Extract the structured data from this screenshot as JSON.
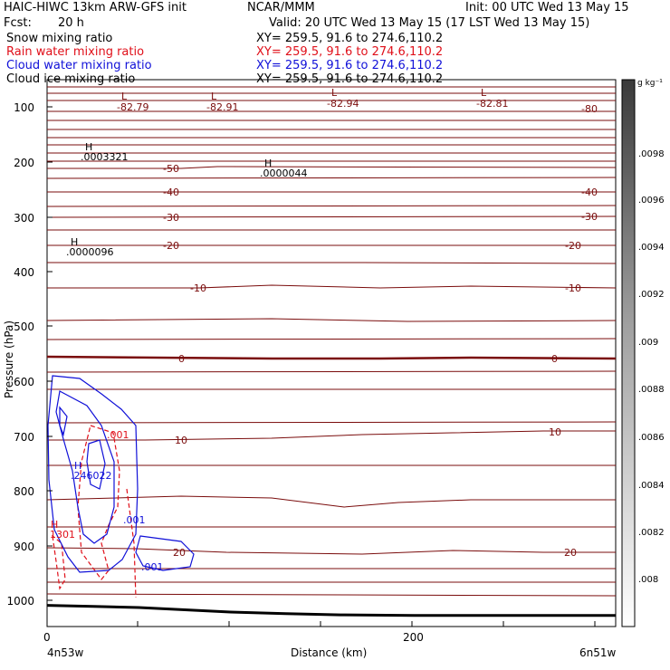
{
  "header": {
    "model": "HAIC-HIWC 13km ARW-GFS init",
    "org": "NCAR/MMM",
    "init": "Init: 00 UTC Wed 13 May 15",
    "fcst_label": "Fcst:",
    "fcst_value": "20 h",
    "valid": "Valid: 20 UTC Wed 13 May 15 (17 LST Wed 13 May 15)"
  },
  "fields": [
    {
      "name": "Snow mixing ratio",
      "xy": "XY= 259.5, 91.6 to 274.6,110.2",
      "color": "#000000"
    },
    {
      "name": "Rain water mixing ratio",
      "xy": "XY= 259.5, 91.6 to 274.6,110.2",
      "color": "#e0101a"
    },
    {
      "name": "Cloud water mixing ratio",
      "xy": "XY= 259.5, 91.6 to 274.6,110.2",
      "color": "#1010d8"
    },
    {
      "name": "Cloud ice mixing ratio",
      "xy": "XY= 259.5, 91.6 to 274.6,110.2",
      "color": "#000000"
    }
  ],
  "colorbar": {
    "unit": "g kg⁻¹",
    "ticks": [
      ".0098",
      ".0096",
      ".0094",
      ".0092",
      ".009",
      ".0088",
      ".0086",
      ".0084",
      ".0082",
      ".008"
    ]
  },
  "axes": {
    "y_label": "Pressure (hPa)",
    "y_ticks": [
      "100",
      "200",
      "300",
      "400",
      "500",
      "600",
      "700",
      "800",
      "900",
      "1000"
    ],
    "x_label": "Distance (km)",
    "x_ticks": [
      "0",
      "200"
    ],
    "left_end": "4n53w",
    "right_end": "6n51w"
  },
  "annotations": {
    "temperature_lows": [
      {
        "letter": "L",
        "value": "-82.79"
      },
      {
        "letter": "L",
        "value": "-82.91"
      },
      {
        "letter": "L",
        "value": "-82.94"
      },
      {
        "letter": "L",
        "value": "-82.81"
      }
    ],
    "highs": [
      {
        "letter": "H",
        "value": ".0003321",
        "color": "#000000"
      },
      {
        "letter": "H",
        "value": ".0000044",
        "color": "#000000"
      },
      {
        "letter": "H",
        "value": ".0000096",
        "color": "#000000"
      },
      {
        "letter": "H",
        "value": ".246022",
        "color": "#1010d8"
      },
      {
        "letter": "H",
        "value": "1301",
        "color": "#e0101a"
      }
    ],
    "contour_labels": [
      {
        "text": "-80",
        "color": "#7a0c0c"
      },
      {
        "text": "-50",
        "color": "#7a0c0c"
      },
      {
        "text": "-40",
        "color": "#7a0c0c"
      },
      {
        "text": "-40",
        "color": "#7a0c0c"
      },
      {
        "text": "-30",
        "color": "#7a0c0c"
      },
      {
        "text": "-30",
        "color": "#7a0c0c"
      },
      {
        "text": "-20",
        "color": "#7a0c0c"
      },
      {
        "text": "-20",
        "color": "#7a0c0c"
      },
      {
        "text": "-10",
        "color": "#7a0c0c"
      },
      {
        "text": "-10",
        "color": "#7a0c0c"
      },
      {
        "text": "0",
        "color": "#7a0c0c"
      },
      {
        "text": "0",
        "color": "#7a0c0c"
      },
      {
        "text": "10",
        "color": "#7a0c0c"
      },
      {
        "text": "10",
        "color": "#7a0c0c"
      },
      {
        "text": "20",
        "color": "#7a0c0c"
      },
      {
        "text": "20",
        "color": "#7a0c0c"
      },
      {
        "text": ".001",
        "color": "#e0101a"
      },
      {
        "text": ".001",
        "color": "#1010d8"
      },
      {
        "text": ".001",
        "color": "#1010d8"
      }
    ]
  },
  "chart_data": {
    "type": "line",
    "title": "",
    "xlabel": "Distance (km)",
    "ylabel": "Pressure (hPa)",
    "xlim": [
      0,
      620
    ],
    "ylim": [
      1030,
      50
    ],
    "y_scale": "linear, inverted",
    "grid": false,
    "isotherm_levels_C": [
      -80,
      -50,
      -40,
      -30,
      -20,
      -10,
      0,
      10,
      20
    ],
    "colors": {
      "temperature": "#7a0c0c",
      "rain": "#e0101a",
      "cloud_water": "#1010d8",
      "terrain": "#000000"
    },
    "terrain_pressure": {
      "x": [
        0,
        50,
        100,
        150,
        200,
        260,
        320,
        400,
        500,
        620
      ],
      "y": [
        992,
        994,
        996,
        1000,
        1004,
        1007,
        1009,
        1010,
        1010,
        1010
      ]
    }
  }
}
